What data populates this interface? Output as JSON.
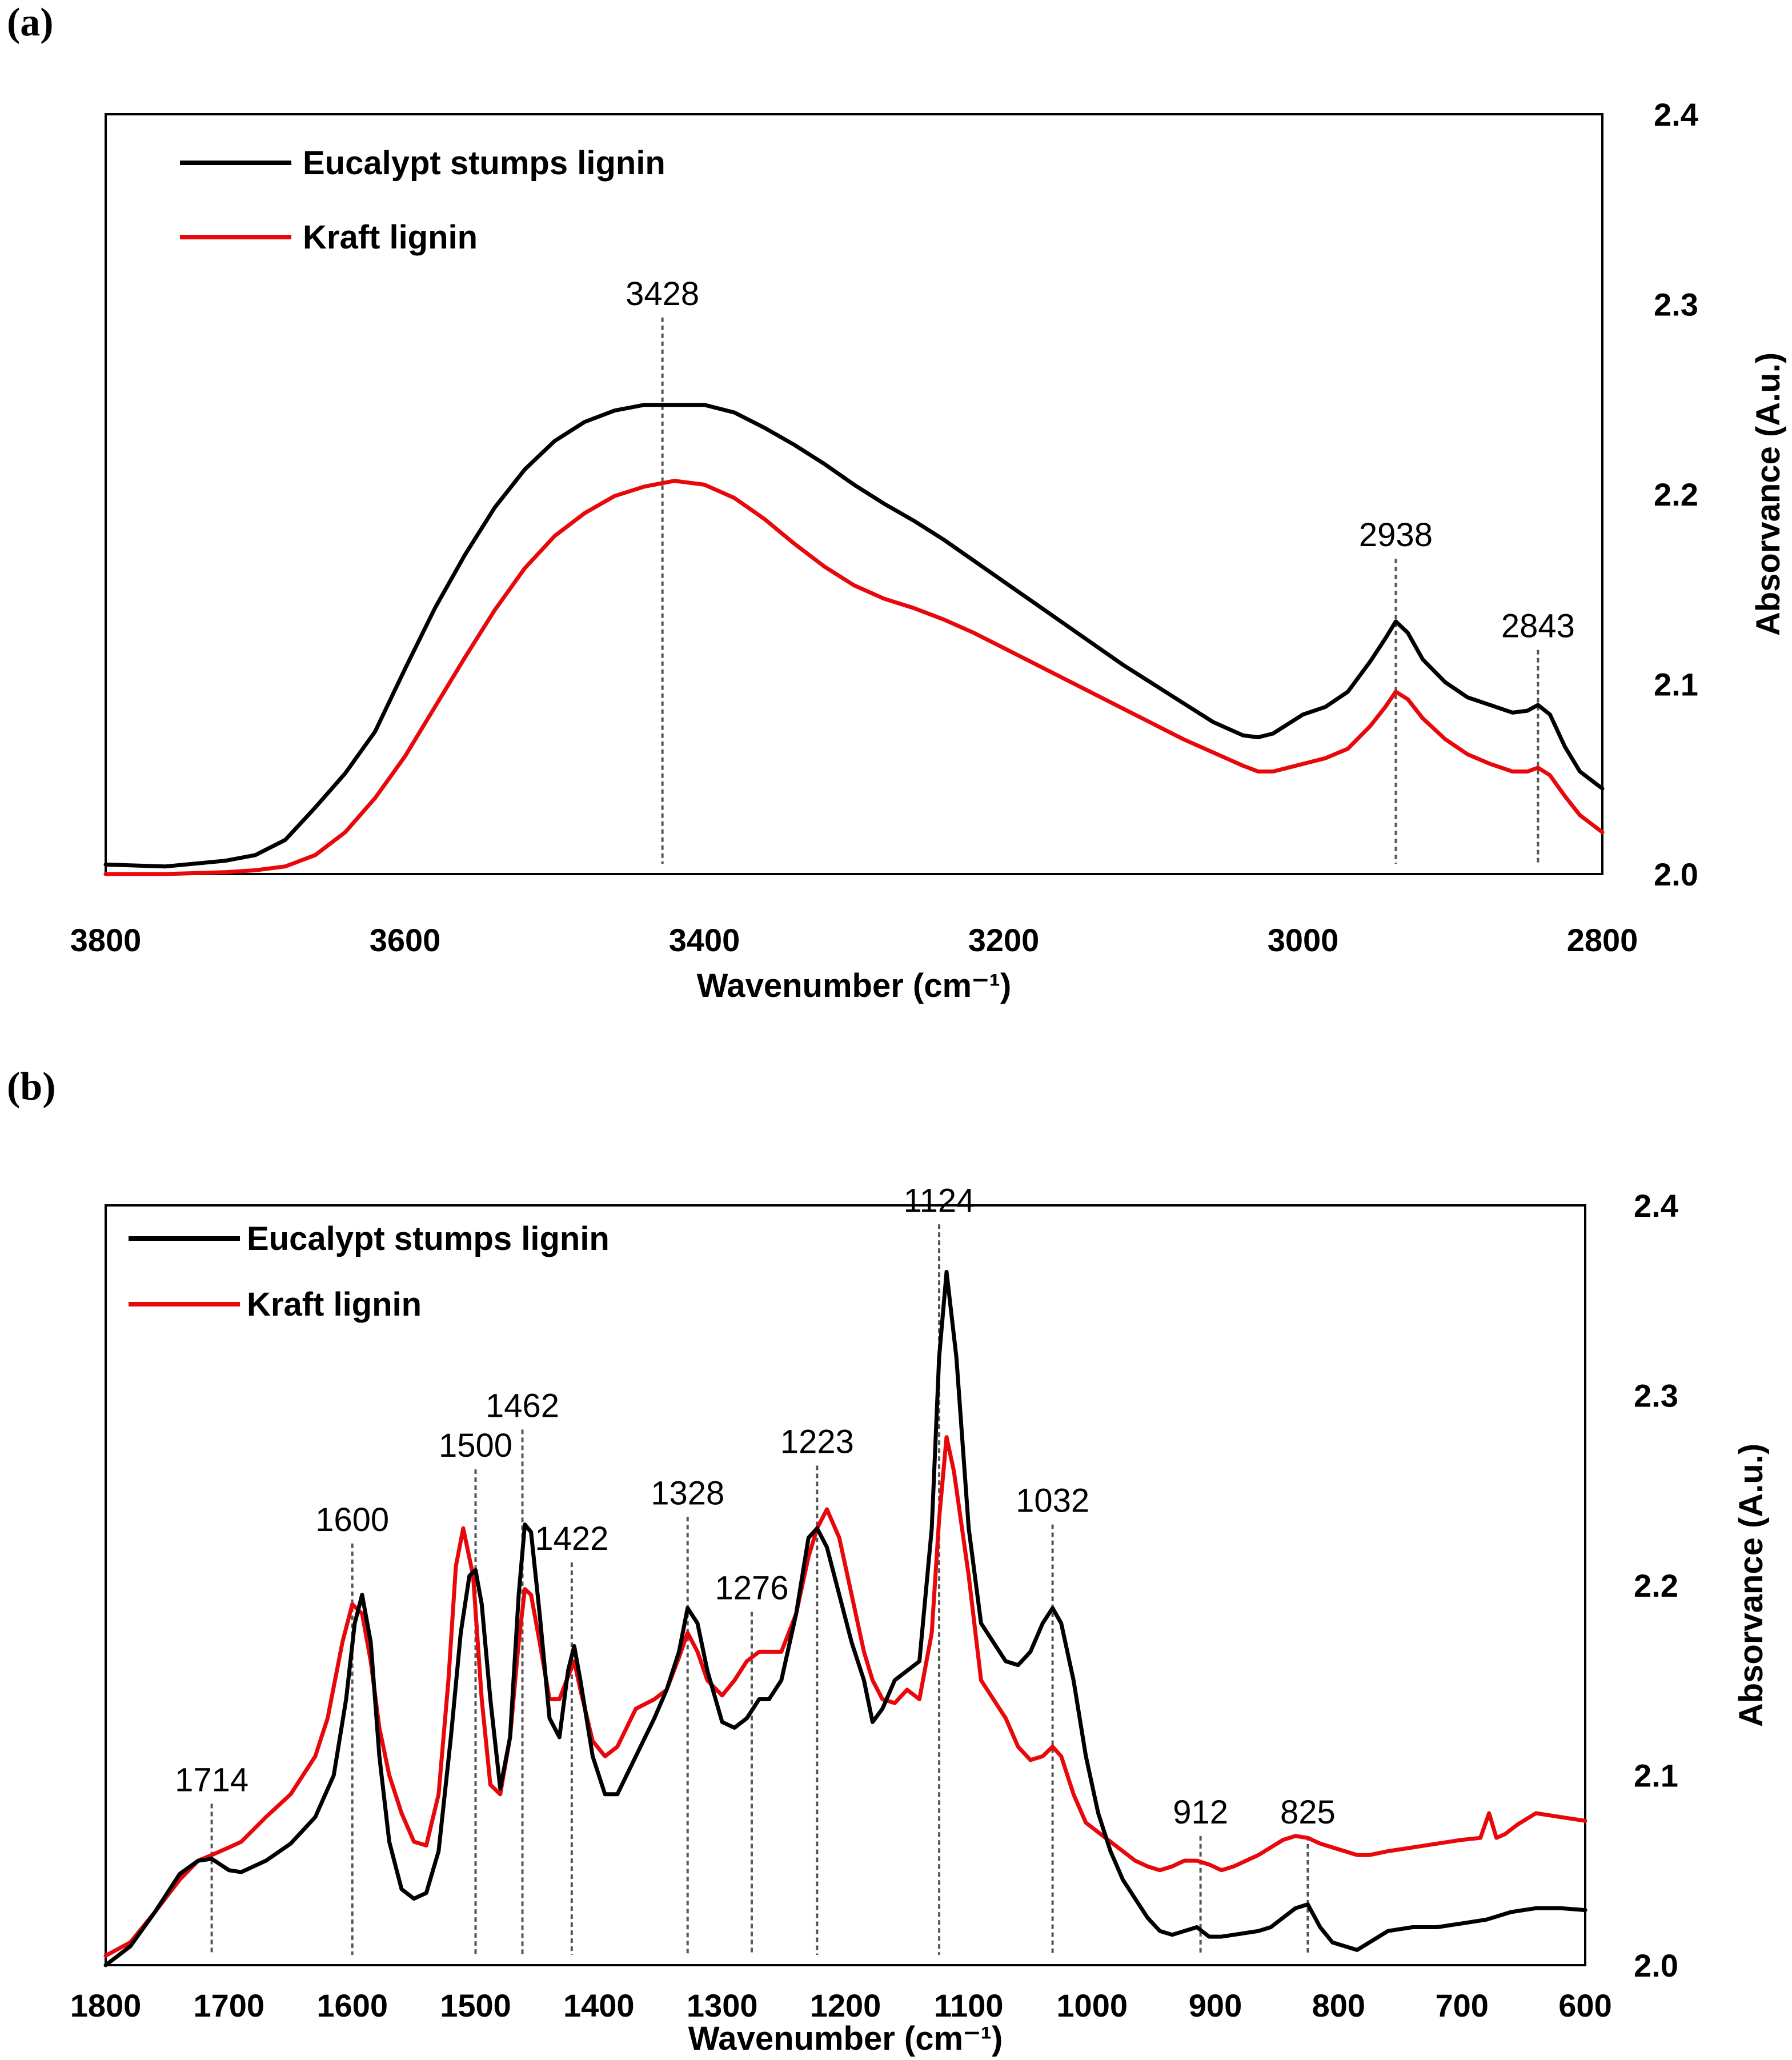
{
  "colors": {
    "eucalypt": "#000000",
    "kraft": "#e8080c"
  },
  "chart_data": [
    {
      "type": "line",
      "panel_label": "(a)",
      "xlabel": "Wavenumber (cm⁻¹)",
      "ylabel": "Absorvance (A.u.)",
      "xlim": [
        3800,
        2800
      ],
      "ylim": [
        2.0,
        2.4
      ],
      "x_ticks": [
        "3800",
        "3600",
        "3400",
        "3200",
        "3000",
        "2800"
      ],
      "y_ticks": [
        "2.0",
        "2.1",
        "2.2",
        "2.3",
        "2.4"
      ],
      "legend": [
        "Eucalypt stumps lignin",
        "Kraft lignin"
      ],
      "annotations": [
        {
          "label": "3428",
          "x": 3428,
          "top": 2.293
        },
        {
          "label": "2938",
          "x": 2938,
          "top": 2.166
        },
        {
          "label": "2843",
          "x": 2843,
          "top": 2.118
        }
      ],
      "series": [
        {
          "name": "Eucalypt stumps lignin",
          "x": [
            3800,
            3760,
            3720,
            3700,
            3680,
            3660,
            3640,
            3620,
            3600,
            3580,
            3560,
            3540,
            3520,
            3500,
            3480,
            3460,
            3440,
            3420,
            3400,
            3380,
            3360,
            3340,
            3320,
            3300,
            3280,
            3260,
            3240,
            3220,
            3200,
            3180,
            3160,
            3140,
            3120,
            3100,
            3080,
            3060,
            3040,
            3030,
            3020,
            3000,
            2985,
            2970,
            2955,
            2945,
            2938,
            2930,
            2920,
            2905,
            2890,
            2875,
            2860,
            2850,
            2843,
            2835,
            2825,
            2815,
            2800
          ],
          "y": [
            2.005,
            2.004,
            2.007,
            2.01,
            2.018,
            2.035,
            2.053,
            2.075,
            2.108,
            2.14,
            2.168,
            2.193,
            2.213,
            2.228,
            2.238,
            2.244,
            2.247,
            2.247,
            2.247,
            2.243,
            2.235,
            2.226,
            2.216,
            2.205,
            2.195,
            2.186,
            2.176,
            2.165,
            2.154,
            2.143,
            2.132,
            2.121,
            2.11,
            2.1,
            2.09,
            2.08,
            2.073,
            2.072,
            2.074,
            2.084,
            2.088,
            2.096,
            2.112,
            2.124,
            2.133,
            2.127,
            2.113,
            2.101,
            2.093,
            2.089,
            2.085,
            2.086,
            2.089,
            2.084,
            2.067,
            2.054,
            2.045
          ]
        },
        {
          "name": "Kraft lignin",
          "x": [
            3800,
            3760,
            3720,
            3700,
            3680,
            3660,
            3640,
            3620,
            3600,
            3580,
            3560,
            3540,
            3520,
            3500,
            3480,
            3460,
            3440,
            3420,
            3400,
            3380,
            3360,
            3340,
            3320,
            3300,
            3280,
            3260,
            3240,
            3220,
            3200,
            3180,
            3160,
            3140,
            3120,
            3100,
            3080,
            3060,
            3040,
            3030,
            3020,
            3000,
            2985,
            2970,
            2955,
            2945,
            2938,
            2930,
            2920,
            2905,
            2890,
            2875,
            2860,
            2850,
            2843,
            2835,
            2825,
            2815,
            2800
          ],
          "y": [
            2.0,
            2.0,
            2.001,
            2.002,
            2.004,
            2.01,
            2.022,
            2.04,
            2.062,
            2.088,
            2.114,
            2.139,
            2.161,
            2.178,
            2.19,
            2.199,
            2.204,
            2.207,
            2.205,
            2.198,
            2.187,
            2.174,
            2.162,
            2.152,
            2.145,
            2.14,
            2.134,
            2.127,
            2.119,
            2.111,
            2.103,
            2.095,
            2.087,
            2.079,
            2.071,
            2.064,
            2.057,
            2.054,
            2.054,
            2.058,
            2.061,
            2.066,
            2.078,
            2.088,
            2.096,
            2.092,
            2.082,
            2.071,
            2.063,
            2.058,
            2.054,
            2.054,
            2.056,
            2.052,
            2.041,
            2.031,
            2.022
          ]
        }
      ]
    },
    {
      "type": "line",
      "panel_label": "(b)",
      "xlabel": "Wavenumber (cm⁻¹)",
      "ylabel": "Absorvance (A.u.)",
      "xlim": [
        1800,
        600
      ],
      "ylim": [
        2.0,
        2.4
      ],
      "x_ticks": [
        "1800",
        "1700",
        "1600",
        "1500",
        "1400",
        "1300",
        "1200",
        "1100",
        "1000",
        "900",
        "800",
        "700",
        "600"
      ],
      "y_ticks": [
        "2.0",
        "2.1",
        "2.2",
        "2.3",
        "2.4"
      ],
      "legend": [
        "Eucalypt stumps lignin",
        "Kraft lignin"
      ],
      "annotations": [
        {
          "label": "1714",
          "x": 1714,
          "top": 2.085
        },
        {
          "label": "1600",
          "x": 1600,
          "top": 2.222
        },
        {
          "label": "1500",
          "x": 1500,
          "top": 2.261
        },
        {
          "label": "1462",
          "x": 1462,
          "top": 2.282
        },
        {
          "label": "1422",
          "x": 1422,
          "top": 2.212
        },
        {
          "label": "1328",
          "x": 1328,
          "top": 2.236
        },
        {
          "label": "1276",
          "x": 1276,
          "top": 2.186
        },
        {
          "label": "1223",
          "x": 1223,
          "top": 2.263
        },
        {
          "label": "1124",
          "x": 1124,
          "top": 2.39
        },
        {
          "label": "1032",
          "x": 1032,
          "top": 2.232
        },
        {
          "label": "912",
          "x": 912,
          "top": 2.068
        },
        {
          "label": "825",
          "x": 825,
          "top": 2.068
        }
      ],
      "series": [
        {
          "name": "Eucalypt stumps lignin",
          "x": [
            1800,
            1780,
            1760,
            1740,
            1725,
            1714,
            1700,
            1690,
            1670,
            1650,
            1630,
            1615,
            1605,
            1598,
            1592,
            1585,
            1578,
            1570,
            1560,
            1550,
            1540,
            1530,
            1520,
            1512,
            1505,
            1500,
            1495,
            1488,
            1480,
            1472,
            1465,
            1460,
            1455,
            1448,
            1440,
            1432,
            1425,
            1420,
            1415,
            1405,
            1395,
            1385,
            1370,
            1355,
            1345,
            1335,
            1328,
            1320,
            1312,
            1300,
            1290,
            1280,
            1270,
            1262,
            1252,
            1240,
            1230,
            1223,
            1215,
            1205,
            1195,
            1185,
            1178,
            1170,
            1160,
            1150,
            1140,
            1130,
            1124,
            1118,
            1110,
            1100,
            1090,
            1080,
            1070,
            1060,
            1050,
            1040,
            1032,
            1025,
            1015,
            1005,
            995,
            985,
            975,
            965,
            955,
            945,
            935,
            925,
            915,
            905,
            895,
            885,
            875,
            865,
            855,
            845,
            835,
            825,
            815,
            805,
            795,
            785,
            775,
            760,
            740,
            720,
            700,
            680,
            660,
            640,
            620,
            600
          ],
          "y": [
            2.0,
            2.01,
            2.028,
            2.048,
            2.055,
            2.056,
            2.05,
            2.049,
            2.055,
            2.064,
            2.078,
            2.1,
            2.14,
            2.18,
            2.195,
            2.17,
            2.11,
            2.065,
            2.04,
            2.035,
            2.038,
            2.06,
            2.12,
            2.175,
            2.205,
            2.208,
            2.19,
            2.14,
            2.093,
            2.12,
            2.195,
            2.232,
            2.228,
            2.185,
            2.13,
            2.12,
            2.155,
            2.168,
            2.15,
            2.11,
            2.09,
            2.09,
            2.11,
            2.13,
            2.145,
            2.165,
            2.188,
            2.18,
            2.155,
            2.128,
            2.125,
            2.13,
            2.14,
            2.14,
            2.15,
            2.185,
            2.225,
            2.23,
            2.22,
            2.195,
            2.17,
            2.15,
            2.128,
            2.135,
            2.15,
            2.155,
            2.16,
            2.23,
            2.32,
            2.365,
            2.32,
            2.23,
            2.18,
            2.17,
            2.16,
            2.158,
            2.165,
            2.18,
            2.188,
            2.18,
            2.15,
            2.11,
            2.08,
            2.06,
            2.045,
            2.035,
            2.025,
            2.018,
            2.016,
            2.018,
            2.02,
            2.015,
            2.015,
            2.016,
            2.017,
            2.018,
            2.02,
            2.025,
            2.03,
            2.032,
            2.02,
            2.012,
            2.01,
            2.008,
            2.012,
            2.018,
            2.02,
            2.02,
            2.022,
            2.024,
            2.028,
            2.03,
            2.03,
            2.029
          ]
        },
        {
          "name": "Kraft lignin",
          "x": [
            1800,
            1780,
            1760,
            1740,
            1725,
            1714,
            1700,
            1690,
            1670,
            1650,
            1630,
            1620,
            1608,
            1600,
            1592,
            1585,
            1578,
            1570,
            1560,
            1550,
            1540,
            1530,
            1522,
            1516,
            1510,
            1502,
            1495,
            1488,
            1480,
            1472,
            1465,
            1460,
            1455,
            1448,
            1440,
            1432,
            1425,
            1420,
            1415,
            1405,
            1395,
            1385,
            1370,
            1355,
            1345,
            1335,
            1328,
            1320,
            1312,
            1300,
            1290,
            1280,
            1270,
            1262,
            1252,
            1240,
            1230,
            1223,
            1215,
            1205,
            1195,
            1185,
            1178,
            1170,
            1160,
            1150,
            1140,
            1130,
            1124,
            1118,
            1112,
            1100,
            1090,
            1080,
            1070,
            1060,
            1050,
            1040,
            1032,
            1025,
            1015,
            1005,
            995,
            985,
            975,
            965,
            955,
            945,
            935,
            925,
            915,
            905,
            895,
            885,
            875,
            865,
            855,
            845,
            835,
            825,
            815,
            805,
            795,
            785,
            775,
            760,
            740,
            720,
            700,
            685,
            678,
            672,
            665,
            655,
            640,
            620,
            600
          ],
          "y": [
            2.005,
            2.012,
            2.028,
            2.045,
            2.055,
            2.058,
            2.062,
            2.065,
            2.078,
            2.09,
            2.11,
            2.13,
            2.17,
            2.19,
            2.185,
            2.16,
            2.125,
            2.1,
            2.08,
            2.065,
            2.063,
            2.09,
            2.15,
            2.21,
            2.23,
            2.205,
            2.14,
            2.095,
            2.09,
            2.12,
            2.17,
            2.198,
            2.195,
            2.17,
            2.14,
            2.14,
            2.152,
            2.16,
            2.145,
            2.118,
            2.11,
            2.115,
            2.135,
            2.14,
            2.145,
            2.162,
            2.175,
            2.165,
            2.15,
            2.142,
            2.15,
            2.16,
            2.165,
            2.165,
            2.165,
            2.185,
            2.215,
            2.23,
            2.24,
            2.225,
            2.195,
            2.165,
            2.15,
            2.14,
            2.138,
            2.145,
            2.14,
            2.175,
            2.235,
            2.278,
            2.26,
            2.205,
            2.15,
            2.14,
            2.13,
            2.115,
            2.108,
            2.11,
            2.115,
            2.11,
            2.09,
            2.075,
            2.07,
            2.065,
            2.06,
            2.055,
            2.052,
            2.05,
            2.052,
            2.055,
            2.055,
            2.053,
            2.05,
            2.052,
            2.055,
            2.058,
            2.062,
            2.066,
            2.068,
            2.067,
            2.064,
            2.062,
            2.06,
            2.058,
            2.058,
            2.06,
            2.062,
            2.064,
            2.066,
            2.067,
            2.08,
            2.067,
            2.069,
            2.074,
            2.08,
            2.078,
            2.076
          ]
        }
      ]
    }
  ]
}
